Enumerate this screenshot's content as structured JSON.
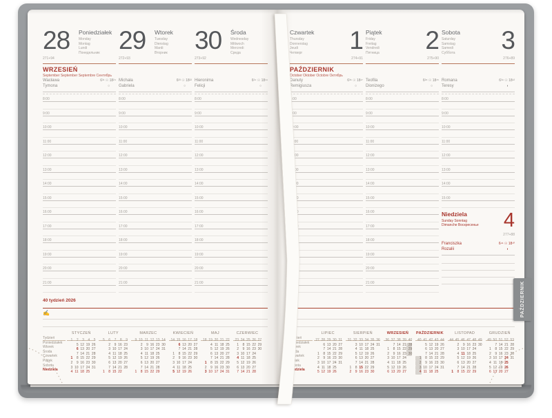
{
  "book": {
    "tab_label": "PAŹDZIERNIK",
    "week_label": "40 tydzień 2026",
    "pen_icon": "✍",
    "accent_red": "#a8352c",
    "cover_gray": "#909395"
  },
  "left_page": {
    "month_header": {
      "name": "WRZESIEŃ",
      "translations": "September  September  Septembre  Сентябрь"
    },
    "days": [
      {
        "number": "28",
        "name": "Poniedziałek",
        "translations": [
          "Monday",
          "Montag",
          "Lundi",
          "Понедельник"
        ],
        "day_of_year": "271+94",
        "name_days": [
          "Wacława",
          "Tymona"
        ],
        "sun": "6³¹ ☉ 18²⁴",
        "moon": "○"
      },
      {
        "number": "29",
        "name": "Wtorek",
        "translations": [
          "Tuesday",
          "Dienstag",
          "Mardi",
          "Вторник"
        ],
        "day_of_year": "272+93",
        "name_days": [
          "Michała",
          "Gabriela"
        ],
        "sun": "6³³ ☉ 18²²",
        "moon": "○"
      },
      {
        "number": "30",
        "name": "Środa",
        "translations": [
          "Wednesday",
          "Mittwoch",
          "Mercredi",
          "Среда"
        ],
        "day_of_year": "273+92",
        "name_days": [
          "Hieronima",
          "Felicji"
        ],
        "sun": "6³⁴ ☉ 18¹⁹",
        "moon": "○"
      }
    ]
  },
  "right_page": {
    "month_header": {
      "name": "PAŹDZIERNIK",
      "translations": "October  Oktober  Octobre  Октябрь"
    },
    "days": [
      {
        "number": "1",
        "name": "Czwartek",
        "translations": [
          "Thursday",
          "Donnerstag",
          "Jeudi",
          "Четверг"
        ],
        "day_of_year": "274+91",
        "name_days": [
          "Danuty",
          "Remigiusza"
        ],
        "sun": "6³⁶ ☉ 18¹⁷",
        "moon": "○"
      },
      {
        "number": "2",
        "name": "Piątek",
        "translations": [
          "Friday",
          "Freitag",
          "Vendredi",
          "Пятница"
        ],
        "day_of_year": "275+90",
        "name_days": [
          "Teofila",
          "Dionizego"
        ],
        "sun": "6³⁸ ☉ 18¹⁵",
        "moon": "○"
      },
      {
        "number": "3",
        "name": "Sobota",
        "translations": [
          "Saturday",
          "Samstag",
          "Samedi",
          "Суббота"
        ],
        "day_of_year": "276+89",
        "name_days": [
          "Romana",
          "Teresy"
        ],
        "sun": "6³⁹ ☉ 18¹²",
        "moon": "◗"
      }
    ],
    "sunday": {
      "number": "4",
      "name": "Niedziela",
      "translations": [
        "Sunday Sonntag",
        "Dimanche Воскресенье"
      ],
      "day_of_year": "277+88",
      "name_days": [
        "Franciszka",
        "Rozalii"
      ],
      "sun": "6⁴¹ ☉ 18¹⁰",
      "moon": "◗"
    }
  },
  "hours": [
    "8:00",
    "9:00",
    "10:00",
    "11:00",
    "12:00",
    "13:00",
    "14:00",
    "15:00",
    "16:00",
    "17:00",
    "18:00",
    "19:00",
    "20:00",
    "21:00"
  ],
  "saturday_hours": [
    "8:00",
    "9:00",
    "10:00",
    "11:00",
    "12:00",
    "13:00",
    "14:00",
    "15:00"
  ],
  "mini_calendar": {
    "row_labels": [
      "Tydzień",
      "Poniedziałek",
      "Wtorek",
      "Środa",
      "Czwartek",
      "Piątek",
      "Sobota",
      "Niedziela"
    ],
    "left_months": [
      {
        "name": "STYCZEŃ",
        "weeks": [
          1,
          2,
          3,
          4,
          5
        ],
        "red": [
          1,
          6
        ],
        "rows": [
          [
            null,
            5,
            12,
            19,
            26
          ],
          [
            null,
            6,
            13,
            20,
            27
          ],
          [
            null,
            7,
            14,
            21,
            28
          ],
          [
            1,
            8,
            15,
            22,
            29
          ],
          [
            2,
            9,
            16,
            23,
            30
          ],
          [
            3,
            10,
            17,
            24,
            31
          ],
          [
            4,
            11,
            18,
            25,
            null
          ]
        ]
      },
      {
        "name": "LUTY",
        "weeks": [
          5,
          6,
          7,
          8,
          9
        ],
        "red": [],
        "rows": [
          [
            null,
            2,
            9,
            16,
            23
          ],
          [
            null,
            3,
            10,
            17,
            24
          ],
          [
            null,
            4,
            11,
            18,
            25
          ],
          [
            null,
            5,
            12,
            19,
            26
          ],
          [
            null,
            6,
            13,
            20,
            27
          ],
          [
            null,
            7,
            14,
            21,
            28
          ],
          [
            1,
            8,
            15,
            22,
            null
          ]
        ]
      },
      {
        "name": "MARZEC",
        "weeks": [
          9,
          10,
          11,
          12,
          13,
          14
        ],
        "red": [],
        "rows": [
          [
            null,
            2,
            9,
            16,
            23,
            30
          ],
          [
            null,
            3,
            10,
            17,
            24,
            31
          ],
          [
            null,
            4,
            11,
            18,
            25,
            null
          ],
          [
            null,
            5,
            12,
            19,
            26,
            null
          ],
          [
            null,
            6,
            13,
            20,
            27,
            null
          ],
          [
            null,
            7,
            14,
            21,
            28,
            null
          ],
          [
            1,
            8,
            15,
            22,
            29,
            null
          ]
        ]
      },
      {
        "name": "KWIECIEŃ",
        "weeks": [
          14,
          15,
          16,
          17,
          18
        ],
        "red": [
          5,
          6
        ],
        "rows": [
          [
            null,
            6,
            13,
            20,
            27
          ],
          [
            null,
            7,
            14,
            21,
            28
          ],
          [
            1,
            8,
            15,
            22,
            29
          ],
          [
            2,
            9,
            16,
            23,
            30
          ],
          [
            3,
            10,
            17,
            24,
            null
          ],
          [
            4,
            11,
            18,
            25,
            null
          ],
          [
            5,
            12,
            19,
            26,
            null
          ]
        ]
      },
      {
        "name": "MAJ",
        "weeks": [
          18,
          19,
          20,
          21,
          22
        ],
        "red": [
          1,
          3
        ],
        "rows": [
          [
            null,
            4,
            11,
            18,
            25
          ],
          [
            null,
            5,
            12,
            19,
            26
          ],
          [
            null,
            6,
            13,
            20,
            27
          ],
          [
            null,
            7,
            14,
            21,
            28
          ],
          [
            1,
            8,
            15,
            22,
            29
          ],
          [
            2,
            9,
            16,
            23,
            30
          ],
          [
            3,
            10,
            17,
            24,
            31
          ]
        ]
      },
      {
        "name": "CZERWIEC",
        "weeks": [
          23,
          24,
          25,
          26,
          27
        ],
        "red": [
          4
        ],
        "rows": [
          [
            1,
            8,
            15,
            22,
            29
          ],
          [
            2,
            9,
            16,
            23,
            30
          ],
          [
            3,
            10,
            17,
            24,
            null
          ],
          [
            4,
            11,
            18,
            25,
            null
          ],
          [
            5,
            12,
            19,
            26,
            null
          ],
          [
            6,
            13,
            20,
            27,
            null
          ],
          [
            7,
            14,
            21,
            28,
            null
          ]
        ]
      }
    ],
    "right_months": [
      {
        "name": "LIPIEC",
        "weeks": [
          27,
          28,
          29,
          30,
          31
        ],
        "red": [],
        "rows": [
          [
            null,
            6,
            13,
            20,
            27
          ],
          [
            null,
            7,
            14,
            21,
            28
          ],
          [
            1,
            8,
            15,
            22,
            29
          ],
          [
            2,
            9,
            16,
            23,
            30
          ],
          [
            3,
            10,
            17,
            24,
            31
          ],
          [
            4,
            11,
            18,
            25,
            null
          ],
          [
            5,
            12,
            19,
            26,
            null
          ]
        ]
      },
      {
        "name": "SIERPIEŃ",
        "weeks": [
          31,
          32,
          33,
          34,
          35,
          36
        ],
        "red": [
          15
        ],
        "rows": [
          [
            null,
            3,
            10,
            17,
            24,
            31
          ],
          [
            null,
            4,
            11,
            18,
            25,
            null
          ],
          [
            null,
            5,
            12,
            19,
            26,
            null
          ],
          [
            null,
            6,
            13,
            20,
            27,
            null
          ],
          [
            null,
            7,
            14,
            21,
            28,
            null
          ],
          [
            1,
            8,
            15,
            22,
            29,
            null
          ],
          [
            2,
            9,
            16,
            23,
            30,
            null
          ]
        ]
      },
      {
        "name": "WRZESIEŃ",
        "weeks": [
          36,
          37,
          38,
          39,
          40
        ],
        "highlight": true,
        "boxed": [
          28,
          29,
          30
        ],
        "red": [],
        "rows": [
          [
            null,
            7,
            14,
            21,
            28
          ],
          [
            1,
            8,
            15,
            22,
            29
          ],
          [
            2,
            9,
            16,
            23,
            30
          ],
          [
            3,
            10,
            17,
            24,
            null
          ],
          [
            4,
            11,
            18,
            25,
            null
          ],
          [
            5,
            12,
            19,
            26,
            null
          ],
          [
            6,
            13,
            20,
            27,
            null
          ]
        ]
      },
      {
        "name": "PAŹDZIERNIK",
        "weeks": [
          40,
          41,
          42,
          43,
          44
        ],
        "highlight": true,
        "boxed": [
          1,
          2,
          3,
          4
        ],
        "red": [],
        "rows": [
          [
            null,
            5,
            12,
            19,
            26
          ],
          [
            null,
            6,
            13,
            20,
            27
          ],
          [
            null,
            7,
            14,
            21,
            28
          ],
          [
            1,
            8,
            15,
            22,
            29
          ],
          [
            2,
            9,
            16,
            23,
            30
          ],
          [
            3,
            10,
            17,
            24,
            31
          ],
          [
            4,
            11,
            18,
            25,
            null
          ]
        ]
      },
      {
        "name": "LISTOPAD",
        "weeks": [
          44,
          45,
          46,
          47,
          48,
          49
        ],
        "red": [
          1,
          11
        ],
        "rows": [
          [
            null,
            2,
            9,
            16,
            23,
            30
          ],
          [
            null,
            3,
            10,
            17,
            24,
            null
          ],
          [
            null,
            4,
            11,
            18,
            25,
            null
          ],
          [
            null,
            5,
            12,
            19,
            26,
            null
          ],
          [
            null,
            6,
            13,
            20,
            27,
            null
          ],
          [
            null,
            7,
            14,
            21,
            28,
            null
          ],
          [
            1,
            8,
            15,
            22,
            29,
            null
          ]
        ]
      },
      {
        "name": "GRUDZIEŃ",
        "weeks": [
          49,
          50,
          51,
          52,
          53
        ],
        "red": [
          24,
          25,
          26
        ],
        "rows": [
          [
            null,
            7,
            14,
            21,
            28
          ],
          [
            1,
            8,
            15,
            22,
            29
          ],
          [
            2,
            9,
            16,
            23,
            30
          ],
          [
            3,
            10,
            17,
            24,
            31
          ],
          [
            4,
            11,
            18,
            25,
            null
          ],
          [
            5,
            12,
            19,
            26,
            null
          ],
          [
            6,
            13,
            20,
            27,
            null
          ]
        ]
      }
    ]
  }
}
